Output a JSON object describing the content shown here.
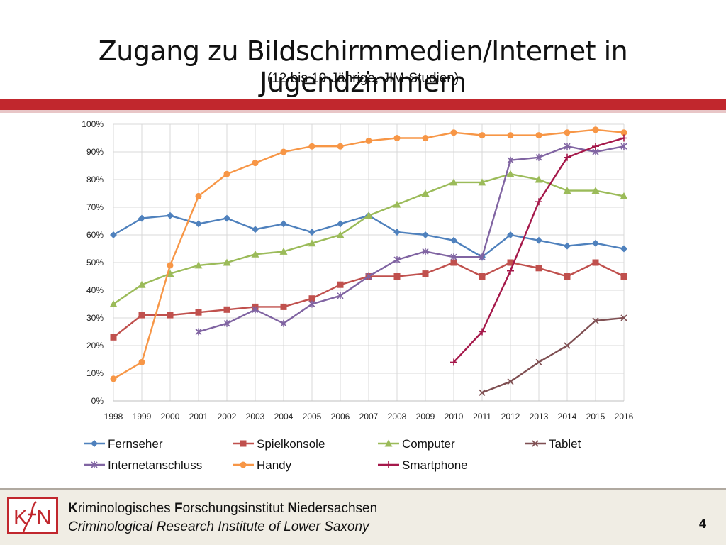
{
  "slide": {
    "title": "Zugang zu Bildschirmmedien/Internet in Jugendzimmern",
    "subtitle": "(12 bis 19-Jährige, JIM-Studien)",
    "page_number": "4"
  },
  "footer": {
    "institute_de_parts": [
      {
        "b": "K",
        "r": "riminologisches "
      },
      {
        "b": "F",
        "r": "orschungsinstitut "
      },
      {
        "b": "N",
        "r": "iedersachsen"
      }
    ],
    "institute_en": "Criminological Research Institute of Lower Saxony",
    "logo_text": "KFN",
    "brand_color": "#c1272d"
  },
  "chart_data": {
    "type": "line",
    "x": [
      "1998",
      "1999",
      "2000",
      "2001",
      "2002",
      "2003",
      "2004",
      "2005",
      "2006",
      "2007",
      "2008",
      "2009",
      "2010",
      "2011",
      "2012",
      "2013",
      "2014",
      "2015",
      "2016"
    ],
    "ylim": [
      0,
      100
    ],
    "y_ticks": [
      "0%",
      "10%",
      "20%",
      "30%",
      "40%",
      "50%",
      "60%",
      "70%",
      "80%",
      "90%",
      "100%"
    ],
    "grid": true,
    "legend_position": "bottom",
    "series": [
      {
        "name": "Fernseher",
        "color": "#4f81bd",
        "marker": "diamond",
        "values": [
          60,
          66,
          67,
          64,
          66,
          62,
          64,
          61,
          64,
          67,
          61,
          60,
          58,
          52,
          60,
          58,
          56,
          57,
          55
        ]
      },
      {
        "name": "Spielkonsole",
        "color": "#c0504d",
        "marker": "square",
        "values": [
          23,
          31,
          31,
          32,
          33,
          34,
          34,
          37,
          42,
          45,
          45,
          46,
          50,
          45,
          50,
          48,
          45,
          50,
          45
        ]
      },
      {
        "name": "Computer",
        "color": "#9bbb59",
        "marker": "triangle",
        "values": [
          35,
          42,
          46,
          49,
          50,
          53,
          54,
          57,
          60,
          67,
          71,
          75,
          79,
          79,
          82,
          80,
          76,
          76,
          74
        ]
      },
      {
        "name": "Tablet",
        "color": "#7f4f52",
        "marker": "x",
        "values": [
          null,
          null,
          null,
          null,
          null,
          null,
          null,
          null,
          null,
          null,
          null,
          null,
          null,
          3,
          7,
          14,
          20,
          29,
          30
        ]
      },
      {
        "name": "Internetanschluss",
        "color": "#8064a2",
        "marker": "star",
        "values": [
          null,
          null,
          null,
          25,
          28,
          33,
          28,
          35,
          38,
          45,
          51,
          54,
          52,
          52,
          87,
          88,
          92,
          90,
          92
        ]
      },
      {
        "name": "Handy",
        "color": "#f79646",
        "marker": "circle",
        "values": [
          8,
          14,
          49,
          74,
          82,
          86,
          90,
          92,
          92,
          94,
          95,
          95,
          97,
          96,
          96,
          96,
          97,
          98,
          97
        ]
      },
      {
        "name": "Smartphone",
        "color": "#a5184a",
        "marker": "plus",
        "values": [
          null,
          null,
          null,
          null,
          null,
          null,
          null,
          null,
          null,
          null,
          null,
          null,
          14,
          25,
          47,
          72,
          88,
          92,
          95
        ]
      }
    ]
  }
}
